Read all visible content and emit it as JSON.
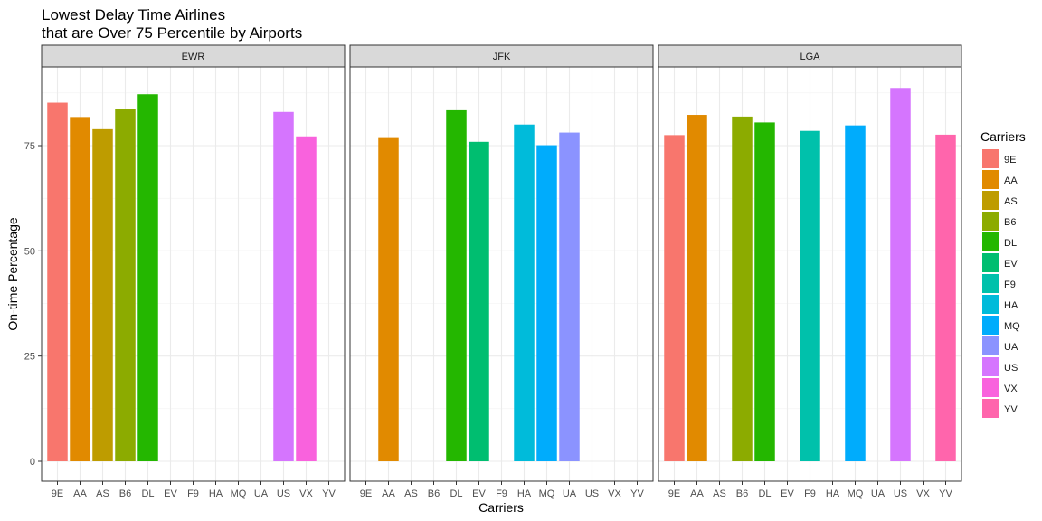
{
  "chart_data": {
    "type": "bar",
    "title_lines": [
      "Lowest Delay Time Airlines",
      "that are Over 75 Percentile by Airports"
    ],
    "xlabel": "Carriers",
    "ylabel": "On-time Percentage",
    "ylim": [
      0,
      90
    ],
    "yticks": [
      0,
      25,
      50,
      75
    ],
    "grid": true,
    "legend": {
      "title": "Carriers",
      "position": "right",
      "items": [
        {
          "label": "9E",
          "color": "#F8766D"
        },
        {
          "label": "AA",
          "color": "#E18A00"
        },
        {
          "label": "AS",
          "color": "#BE9C00"
        },
        {
          "label": "B6",
          "color": "#8CAB00"
        },
        {
          "label": "DL",
          "color": "#24B700"
        },
        {
          "label": "EV",
          "color": "#00BE70"
        },
        {
          "label": "F9",
          "color": "#00C1AB"
        },
        {
          "label": "HA",
          "color": "#00BBDA"
        },
        {
          "label": "MQ",
          "color": "#00ACFC"
        },
        {
          "label": "UA",
          "color": "#8B93FF"
        },
        {
          "label": "US",
          "color": "#D575FE"
        },
        {
          "label": "VX",
          "color": "#F962DD"
        },
        {
          "label": "YV",
          "color": "#FF65AC"
        }
      ]
    },
    "categories": [
      "9E",
      "AA",
      "AS",
      "B6",
      "DL",
      "EV",
      "F9",
      "HA",
      "MQ",
      "UA",
      "US",
      "VX",
      "YV"
    ],
    "panels": [
      {
        "name": "EWR",
        "values": [
          85.2,
          81.8,
          78.9,
          83.6,
          87.2,
          null,
          null,
          null,
          null,
          null,
          83.0,
          77.2,
          null
        ]
      },
      {
        "name": "JFK",
        "values": [
          null,
          76.8,
          null,
          null,
          83.4,
          75.9,
          null,
          80.0,
          75.1,
          78.1,
          null,
          null,
          null
        ]
      },
      {
        "name": "LGA",
        "values": [
          77.5,
          82.3,
          null,
          81.9,
          80.5,
          null,
          78.5,
          null,
          79.8,
          null,
          88.7,
          null,
          77.6
        ]
      }
    ]
  }
}
